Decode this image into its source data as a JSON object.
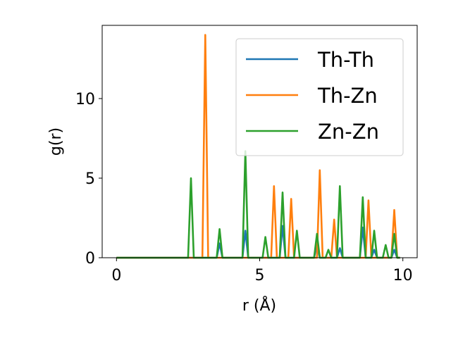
{
  "chart_data": {
    "type": "line",
    "title": "",
    "xlabel": "r (Å)",
    "ylabel": "g(r)",
    "xlim": [
      -0.5,
      10.5
    ],
    "ylim": [
      0,
      14.6
    ],
    "xticks": [
      0,
      5,
      10
    ],
    "yticks": [
      0,
      5,
      10
    ],
    "grid": false,
    "legend_position": "top-right",
    "series": [
      {
        "name": "Th-Th",
        "color": "#1f77b4",
        "points": [
          [
            0,
            0
          ],
          [
            3.5,
            0
          ],
          [
            3.6,
            0.9
          ],
          [
            3.7,
            0
          ],
          [
            4.4,
            0
          ],
          [
            4.5,
            1.7
          ],
          [
            4.6,
            0
          ],
          [
            5.7,
            0
          ],
          [
            5.8,
            2.0
          ],
          [
            5.9,
            0
          ],
          [
            6.9,
            0
          ],
          [
            7.0,
            0.8
          ],
          [
            7.1,
            0
          ],
          [
            7.7,
            0
          ],
          [
            7.8,
            0.6
          ],
          [
            7.9,
            0
          ],
          [
            8.5,
            0
          ],
          [
            8.6,
            1.9
          ],
          [
            8.7,
            0
          ],
          [
            8.9,
            0
          ],
          [
            9.0,
            0.5
          ],
          [
            9.1,
            0
          ],
          [
            9.6,
            0
          ],
          [
            9.7,
            0.5
          ],
          [
            9.8,
            0
          ],
          [
            9.9,
            0
          ]
        ]
      },
      {
        "name": "Th-Zn",
        "color": "#ff7f0e",
        "points": [
          [
            0,
            0
          ],
          [
            3.0,
            0
          ],
          [
            3.1,
            14.0
          ],
          [
            3.2,
            0
          ],
          [
            5.4,
            0
          ],
          [
            5.5,
            4.5
          ],
          [
            5.6,
            0
          ],
          [
            6.0,
            0
          ],
          [
            6.1,
            3.7
          ],
          [
            6.2,
            0
          ],
          [
            7.0,
            0
          ],
          [
            7.1,
            5.5
          ],
          [
            7.2,
            0
          ],
          [
            7.5,
            0
          ],
          [
            7.6,
            2.4
          ],
          [
            7.7,
            0
          ],
          [
            8.7,
            0
          ],
          [
            8.8,
            3.6
          ],
          [
            8.9,
            0
          ],
          [
            9.6,
            0
          ],
          [
            9.7,
            3.0
          ],
          [
            9.8,
            0
          ],
          [
            9.9,
            0
          ]
        ]
      },
      {
        "name": "Zn-Zn",
        "color": "#2ca02c",
        "points": [
          [
            0,
            0
          ],
          [
            2.5,
            0
          ],
          [
            2.6,
            5.0
          ],
          [
            2.7,
            0
          ],
          [
            3.5,
            0
          ],
          [
            3.6,
            1.8
          ],
          [
            3.7,
            0
          ],
          [
            4.4,
            0
          ],
          [
            4.5,
            6.7
          ],
          [
            4.6,
            0
          ],
          [
            5.1,
            0
          ],
          [
            5.2,
            1.3
          ],
          [
            5.3,
            0
          ],
          [
            5.7,
            0
          ],
          [
            5.8,
            4.1
          ],
          [
            5.9,
            0
          ],
          [
            6.2,
            0
          ],
          [
            6.3,
            1.7
          ],
          [
            6.4,
            0
          ],
          [
            6.9,
            0
          ],
          [
            7.0,
            1.5
          ],
          [
            7.1,
            0
          ],
          [
            7.3,
            0
          ],
          [
            7.4,
            0.5
          ],
          [
            7.5,
            0
          ],
          [
            7.7,
            0
          ],
          [
            7.8,
            4.5
          ],
          [
            7.9,
            0
          ],
          [
            8.5,
            0
          ],
          [
            8.6,
            3.8
          ],
          [
            8.7,
            0
          ],
          [
            8.9,
            0
          ],
          [
            9.0,
            1.7
          ],
          [
            9.1,
            0
          ],
          [
            9.3,
            0
          ],
          [
            9.4,
            0.8
          ],
          [
            9.5,
            0
          ],
          [
            9.6,
            0
          ],
          [
            9.7,
            1.5
          ],
          [
            9.8,
            0
          ],
          [
            9.9,
            0
          ]
        ]
      }
    ]
  }
}
